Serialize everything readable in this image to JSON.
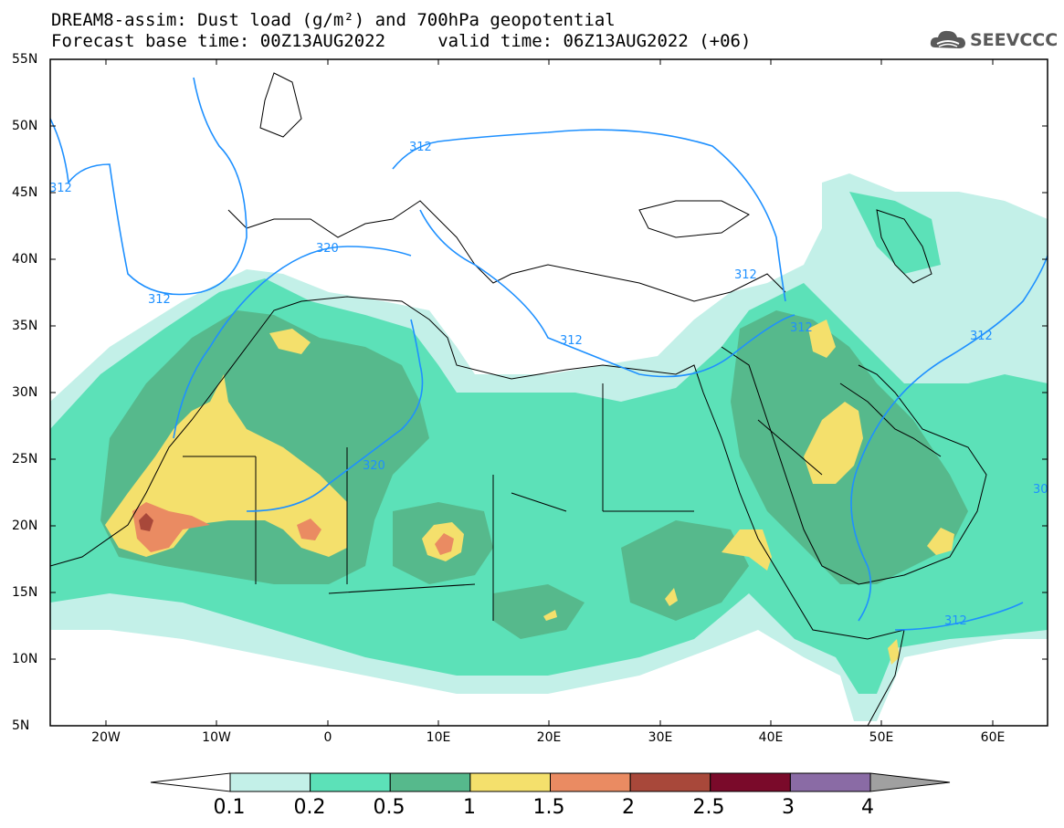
{
  "title": {
    "line1": "DREAM8-assim: Dust load (g/m²) and 700hPa geopotential",
    "line2": "Forecast base time: 00Z13AUG2022     valid time: 06Z13AUG2022 (+06)"
  },
  "logo": {
    "text": "SEEVCCC",
    "icon": "cloud-logo-icon",
    "color": "#595959"
  },
  "map": {
    "projection": "equirectangular",
    "lon_range": [
      -25,
      65
    ],
    "lat_range": [
      5,
      55
    ],
    "lat_labels": [
      "55N",
      "50N",
      "45N",
      "40N",
      "35N",
      "30N",
      "25N",
      "20N",
      "15N",
      "10N",
      "5N"
    ],
    "lon_labels": [
      "20W",
      "10W",
      "0",
      "10E",
      "20E",
      "30E",
      "40E",
      "50E",
      "60E"
    ],
    "contour_labels": [
      "312",
      "312",
      "320",
      "312",
      "312",
      "312",
      "320",
      "312",
      "312",
      "312",
      "30"
    ],
    "contour_color": "#1e90ff",
    "coastline_color": "#000000"
  },
  "colorbar": {
    "labels": [
      "0.1",
      "0.2",
      "0.5",
      "1",
      "1.5",
      "2",
      "2.5",
      "3",
      "4"
    ],
    "colors": [
      "#ffffff",
      "#c3f0e8",
      "#5ce1b8",
      "#56b98c",
      "#f4e06c",
      "#ea8b62",
      "#a8483a",
      "#7a0a2a",
      "#8a6ba5",
      "#a0a0a0"
    ]
  }
}
